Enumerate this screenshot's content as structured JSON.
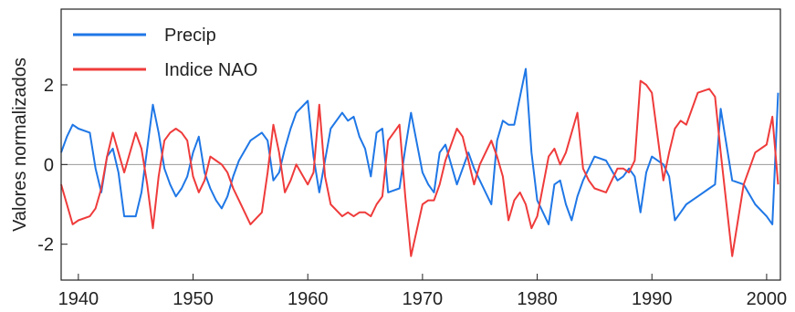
{
  "chart_data": {
    "type": "line",
    "title": "",
    "xlabel": "",
    "ylabel": "Valores normalizados",
    "xlim": [
      1938.5,
      2001.2
    ],
    "ylim": [
      -2.9,
      3.9
    ],
    "xticks": [
      1940,
      1950,
      1960,
      1970,
      1980,
      1990,
      2000
    ],
    "yticks": [
      -2,
      0,
      2
    ],
    "zero_line": true,
    "legend_position": "top-left",
    "series": [
      {
        "name": "Precip",
        "color": "#1f77e6",
        "x": [
          1938.5,
          1939,
          1939.5,
          1940,
          1941,
          1941.5,
          1942,
          1942.5,
          1943,
          1943.5,
          1944,
          1944.5,
          1945,
          1945.5,
          1946,
          1946.5,
          1947,
          1947.5,
          1948,
          1948.5,
          1949,
          1949.5,
          1950,
          1950.5,
          1951,
          1951.5,
          1952,
          1952.5,
          1953,
          1953.5,
          1954,
          1955,
          1956,
          1956.5,
          1957,
          1957.5,
          1958,
          1958.5,
          1959,
          1960,
          1960.5,
          1961,
          1961.5,
          1962,
          1963,
          1963.5,
          1964,
          1964.5,
          1965,
          1965.5,
          1966,
          1966.5,
          1967,
          1968,
          1968.5,
          1969,
          1970,
          1970.5,
          1971,
          1971.5,
          1972,
          1973,
          1973.5,
          1974,
          1974.5,
          1975,
          1976,
          1976.5,
          1977,
          1977.5,
          1978,
          1978.5,
          1979,
          1979.5,
          1980,
          1981,
          1981.5,
          1982,
          1982.5,
          1983,
          1983.5,
          1984,
          1984.5,
          1985,
          1986,
          1987,
          1987.5,
          1988,
          1988.5,
          1989,
          1989.5,
          1990,
          1991,
          1991.5,
          1992,
          1992.5,
          1993,
          1994,
          1995,
          1995.5,
          1996,
          1997,
          1998,
          1999,
          2000,
          2000.5,
          2001
        ],
        "values": [
          0.3,
          0.7,
          1.0,
          0.9,
          0.8,
          -0.1,
          -0.7,
          0.2,
          0.4,
          -0.2,
          -1.3,
          -1.3,
          -1.3,
          -0.7,
          0.4,
          1.5,
          0.8,
          -0.1,
          -0.5,
          -0.8,
          -0.6,
          -0.3,
          0.3,
          0.7,
          -0.2,
          -0.6,
          -0.9,
          -1.1,
          -0.8,
          -0.3,
          0.1,
          0.6,
          0.8,
          0.6,
          -0.4,
          -0.2,
          0.4,
          0.9,
          1.3,
          1.6,
          0.2,
          -0.7,
          0.1,
          0.9,
          1.3,
          1.1,
          1.2,
          0.7,
          0.4,
          -0.3,
          0.8,
          0.9,
          -0.7,
          -0.6,
          0.4,
          1.3,
          -0.2,
          -0.5,
          -0.7,
          0.3,
          0.5,
          -0.5,
          -0.1,
          0.3,
          -0.1,
          -0.4,
          -1.0,
          0.6,
          1.1,
          1.0,
          1.0,
          1.7,
          2.4,
          0.3,
          -0.9,
          -1.5,
          -0.5,
          -0.4,
          -1.0,
          -1.4,
          -0.8,
          -0.4,
          -0.1,
          0.2,
          0.1,
          -0.4,
          -0.3,
          -0.1,
          -0.3,
          -1.2,
          -0.2,
          0.2,
          0.0,
          -0.3,
          -1.4,
          -1.2,
          -1.0,
          -0.8,
          -0.6,
          -0.5,
          1.4,
          -0.4,
          -0.5,
          -1.0,
          -1.3,
          -1.5,
          1.8
        ]
      },
      {
        "name": "Indice NAO",
        "color": "#ef3b3b",
        "x": [
          1938.5,
          1939,
          1939.5,
          1940,
          1941,
          1941.5,
          1942,
          1942.5,
          1943,
          1943.5,
          1944,
          1944.5,
          1945,
          1945.5,
          1946,
          1946.5,
          1947,
          1947.5,
          1948,
          1948.5,
          1949,
          1949.5,
          1950,
          1950.5,
          1951,
          1951.5,
          1952,
          1952.5,
          1953,
          1953.5,
          1954,
          1955,
          1956,
          1956.5,
          1957,
          1957.5,
          1958,
          1958.5,
          1959,
          1960,
          1960.5,
          1961,
          1961.5,
          1962,
          1963,
          1963.5,
          1964,
          1964.5,
          1965,
          1965.5,
          1966,
          1966.5,
          1967,
          1968,
          1968.5,
          1969,
          1970,
          1970.5,
          1971,
          1971.5,
          1972,
          1973,
          1973.5,
          1974,
          1974.5,
          1975,
          1976,
          1976.5,
          1977,
          1977.5,
          1978,
          1978.5,
          1979,
          1979.5,
          1980,
          1981,
          1981.5,
          1982,
          1982.5,
          1983,
          1983.5,
          1984,
          1984.5,
          1985,
          1986,
          1987,
          1987.5,
          1988,
          1988.5,
          1989,
          1989.5,
          1990,
          1991,
          1991.5,
          1992,
          1992.5,
          1993,
          1994,
          1995,
          1995.5,
          1996,
          1997,
          1998,
          1999,
          2000,
          2000.5,
          2001
        ],
        "values": [
          -0.5,
          -1.0,
          -1.5,
          -1.4,
          -1.3,
          -1.1,
          -0.6,
          0.2,
          0.8,
          0.3,
          -0.2,
          0.3,
          0.8,
          0.4,
          -0.5,
          -1.6,
          -0.3,
          0.6,
          0.8,
          0.9,
          0.8,
          0.6,
          -0.3,
          -0.7,
          -0.4,
          0.2,
          0.1,
          0.0,
          -0.2,
          -0.6,
          -0.9,
          -1.5,
          -1.2,
          -0.2,
          1.0,
          0.3,
          -0.7,
          -0.4,
          0.0,
          -0.5,
          -0.2,
          1.5,
          -0.3,
          -1.0,
          -1.3,
          -1.2,
          -1.3,
          -1.2,
          -1.2,
          -1.3,
          -1.0,
          -0.8,
          0.6,
          1.0,
          -0.8,
          -2.3,
          -1.0,
          -0.9,
          -0.9,
          -0.5,
          0.1,
          0.9,
          0.7,
          0.1,
          -0.5,
          0.0,
          0.6,
          0.2,
          -0.3,
          -1.4,
          -0.9,
          -0.7,
          -1.0,
          -1.6,
          -1.3,
          0.2,
          0.4,
          0.0,
          0.3,
          0.8,
          1.3,
          -0.1,
          -0.4,
          -0.6,
          -0.7,
          -0.1,
          -0.1,
          -0.2,
          0.1,
          2.1,
          2.0,
          1.8,
          -0.4,
          0.3,
          0.9,
          1.1,
          1.0,
          1.8,
          1.9,
          1.7,
          0.3,
          -2.3,
          -0.5,
          0.3,
          0.5,
          1.2,
          -0.5
        ]
      }
    ]
  }
}
